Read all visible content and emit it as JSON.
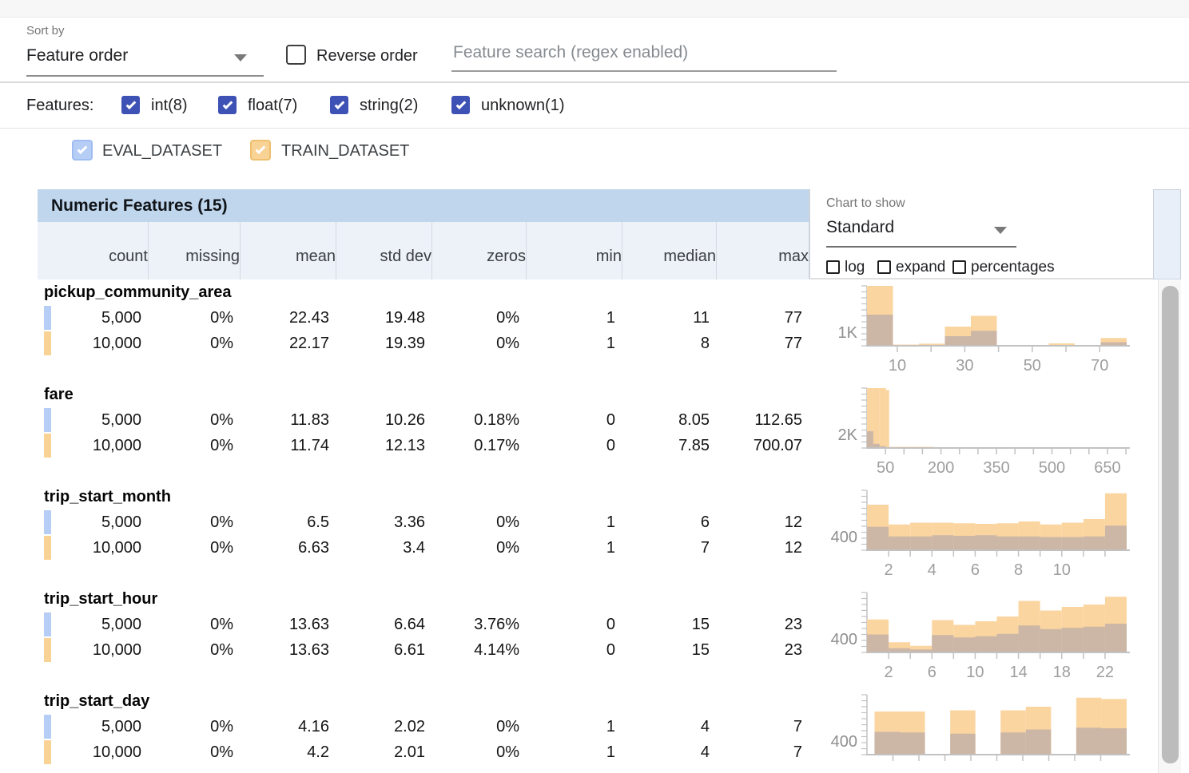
{
  "toolbar": {
    "sort_by_label": "Sort by",
    "sort_by_value": "Feature order",
    "reverse_order_label": "Reverse order",
    "search_placeholder": "Feature search (regex enabled)"
  },
  "filters": {
    "label": "Features:",
    "checkbox_color": "#3e51b5",
    "items": [
      {
        "label": "int(8)",
        "checked": true
      },
      {
        "label": "float(7)",
        "checked": true
      },
      {
        "label": "string(2)",
        "checked": true
      },
      {
        "label": "unknown(1)",
        "checked": true
      }
    ]
  },
  "datasets": {
    "items": [
      {
        "name": "EVAL_DATASET",
        "checked": true,
        "color": "#b6cdf6",
        "border": "#a0bdf1"
      },
      {
        "name": "TRAIN_DATASET",
        "checked": true,
        "color": "#f9d395",
        "border": "#eec06f"
      }
    ]
  },
  "table": {
    "title": "Numeric Features (15)",
    "columns": [
      "count",
      "missing",
      "mean",
      "std dev",
      "zeros",
      "min",
      "median",
      "max"
    ],
    "header_bg": "#c0d6ed",
    "subheader_bg": "#edf1f8"
  },
  "chart_controls": {
    "label": "Chart to show",
    "selected": "Standard",
    "options": [
      {
        "label": "log",
        "checked": false
      },
      {
        "label": "expand",
        "checked": false
      },
      {
        "label": "percentages",
        "checked": false
      }
    ]
  },
  "features": [
    {
      "name": "pickup_community_area",
      "rows": [
        {
          "dataset": "EVAL_DATASET",
          "cells": [
            "5,000",
            "0%",
            "22.43",
            "19.48",
            "0%",
            "1",
            "11",
            "77"
          ]
        },
        {
          "dataset": "TRAIN_DATASET",
          "cells": [
            "10,000",
            "0%",
            "22.17",
            "19.39",
            "0%",
            "1",
            "8",
            "77"
          ]
        }
      ]
    },
    {
      "name": "fare",
      "rows": [
        {
          "dataset": "EVAL_DATASET",
          "cells": [
            "5,000",
            "0%",
            "11.83",
            "10.26",
            "0.18%",
            "0",
            "8.05",
            "112.65"
          ]
        },
        {
          "dataset": "TRAIN_DATASET",
          "cells": [
            "10,000",
            "0%",
            "11.74",
            "12.13",
            "0.17%",
            "0",
            "7.85",
            "700.07"
          ]
        }
      ]
    },
    {
      "name": "trip_start_month",
      "rows": [
        {
          "dataset": "EVAL_DATASET",
          "cells": [
            "5,000",
            "0%",
            "6.5",
            "3.36",
            "0%",
            "1",
            "6",
            "12"
          ]
        },
        {
          "dataset": "TRAIN_DATASET",
          "cells": [
            "10,000",
            "0%",
            "6.63",
            "3.4",
            "0%",
            "1",
            "7",
            "12"
          ]
        }
      ]
    },
    {
      "name": "trip_start_hour",
      "rows": [
        {
          "dataset": "EVAL_DATASET",
          "cells": [
            "5,000",
            "0%",
            "13.63",
            "6.64",
            "3.76%",
            "0",
            "15",
            "23"
          ]
        },
        {
          "dataset": "TRAIN_DATASET",
          "cells": [
            "10,000",
            "0%",
            "13.63",
            "6.61",
            "4.14%",
            "0",
            "15",
            "23"
          ]
        }
      ]
    },
    {
      "name": "trip_start_day",
      "rows": [
        {
          "dataset": "EVAL_DATASET",
          "cells": [
            "5,000",
            "0%",
            "4.16",
            "2.02",
            "0%",
            "1",
            "4",
            "7"
          ]
        },
        {
          "dataset": "TRAIN_DATASET",
          "cells": [
            "10,000",
            "0%",
            "4.2",
            "2.01",
            "0%",
            "1",
            "4",
            "7"
          ]
        }
      ]
    }
  ],
  "chart_style": {
    "train_color": "#fbd5a0",
    "eval_overlap_color": "#ccb6a6",
    "axis_color": "#c2c2c2",
    "tick_label_color": "#9e9e9e",
    "y_label_color": "#8f8f8f"
  },
  "chart_data": [
    {
      "type": "bar",
      "title": "pickup_community_area histogram",
      "series": [
        "TRAIN_DATASET",
        "EVAL_DATASET"
      ],
      "y_tick_label": "1K",
      "xmin": 1,
      "xmax": 78,
      "x_tick_labels": [
        10,
        30,
        50,
        70
      ],
      "minor_tick_start": 10,
      "minor_tick_step": 10,
      "bars": [
        {
          "x0": 1,
          "x1": 8.7,
          "train": 1.0,
          "eval": 0.52
        },
        {
          "x0": 8.7,
          "x1": 16.4,
          "train": 0.02,
          "eval": 0.01
        },
        {
          "x0": 16.4,
          "x1": 24.1,
          "train": 0.035,
          "eval": 0.015
        },
        {
          "x0": 24.1,
          "x1": 31.8,
          "train": 0.32,
          "eval": 0.16
        },
        {
          "x0": 31.8,
          "x1": 39.5,
          "train": 0.5,
          "eval": 0.25
        },
        {
          "x0": 39.5,
          "x1": 47.2,
          "train": 0.012,
          "eval": 0.006
        },
        {
          "x0": 47.2,
          "x1": 54.9,
          "train": 0.004,
          "eval": 0.002
        },
        {
          "x0": 54.9,
          "x1": 62.6,
          "train": 0.04,
          "eval": 0.012
        },
        {
          "x0": 62.6,
          "x1": 70.3,
          "train": 0.004,
          "eval": 0.002
        },
        {
          "x0": 70.3,
          "x1": 78,
          "train": 0.13,
          "eval": 0.06
        }
      ]
    },
    {
      "type": "bar",
      "title": "fare histogram",
      "series": [
        "TRAIN_DATASET",
        "EVAL_DATASET"
      ],
      "y_tick_label": "2K",
      "xmin": 0,
      "xmax": 702,
      "x_tick_labels": [
        50,
        200,
        350,
        500,
        650
      ],
      "minor_tick_start": 50,
      "minor_tick_step": 50,
      "bars": [
        {
          "x0": 0,
          "x1": 17,
          "train": 1.0,
          "eval": 0.28
        },
        {
          "x0": 17,
          "x1": 34,
          "train": 1.0,
          "eval": 0.07
        },
        {
          "x0": 34,
          "x1": 51,
          "train": 1.0,
          "eval": 0.03
        },
        {
          "x0": 51,
          "x1": 60,
          "train": 0.97,
          "eval": 0.01
        },
        {
          "x0": 60,
          "x1": 180,
          "train": 0.02,
          "eval": 0.004
        },
        {
          "x0": 180,
          "x1": 702,
          "train": 0.0,
          "eval": 0.0
        }
      ]
    },
    {
      "type": "bar",
      "title": "trip_start_month histogram",
      "series": [
        "TRAIN_DATASET",
        "EVAL_DATASET"
      ],
      "y_tick_label": "400",
      "xmin": 1,
      "xmax": 13,
      "x_tick_labels": [
        2,
        4,
        6,
        8,
        10
      ],
      "minor_tick_start": 2,
      "minor_tick_step": 1,
      "bars": [
        {
          "x0": 1,
          "x1": 2,
          "train": 0.76,
          "eval": 0.39
        },
        {
          "x0": 2,
          "x1": 3,
          "train": 0.43,
          "eval": 0.23
        },
        {
          "x0": 3,
          "x1": 4,
          "train": 0.46,
          "eval": 0.23
        },
        {
          "x0": 4,
          "x1": 5,
          "train": 0.46,
          "eval": 0.25
        },
        {
          "x0": 5,
          "x1": 6,
          "train": 0.45,
          "eval": 0.24
        },
        {
          "x0": 6,
          "x1": 7,
          "train": 0.44,
          "eval": 0.25
        },
        {
          "x0": 7,
          "x1": 8,
          "train": 0.45,
          "eval": 0.23
        },
        {
          "x0": 8,
          "x1": 9,
          "train": 0.48,
          "eval": 0.23
        },
        {
          "x0": 9,
          "x1": 10,
          "train": 0.43,
          "eval": 0.22
        },
        {
          "x0": 10,
          "x1": 11,
          "train": 0.46,
          "eval": 0.22
        },
        {
          "x0": 11,
          "x1": 12,
          "train": 0.52,
          "eval": 0.23
        },
        {
          "x0": 12,
          "x1": 13,
          "train": 0.95,
          "eval": 0.41
        }
      ]
    },
    {
      "type": "bar",
      "title": "trip_start_hour histogram",
      "series": [
        "TRAIN_DATASET",
        "EVAL_DATASET"
      ],
      "y_tick_label": "400",
      "xmin": 0,
      "xmax": 24,
      "x_tick_labels": [
        2,
        6,
        10,
        14,
        18,
        22
      ],
      "minor_tick_start": 2,
      "minor_tick_step": 2,
      "bars": [
        {
          "x0": 0,
          "x1": 2,
          "train": 0.55,
          "eval": 0.3
        },
        {
          "x0": 2,
          "x1": 4,
          "train": 0.17,
          "eval": 0.07
        },
        {
          "x0": 4,
          "x1": 6,
          "train": 0.11,
          "eval": 0.05
        },
        {
          "x0": 6,
          "x1": 8,
          "train": 0.54,
          "eval": 0.29
        },
        {
          "x0": 8,
          "x1": 10,
          "train": 0.46,
          "eval": 0.25
        },
        {
          "x0": 10,
          "x1": 12,
          "train": 0.52,
          "eval": 0.27
        },
        {
          "x0": 12,
          "x1": 14,
          "train": 0.6,
          "eval": 0.31
        },
        {
          "x0": 14,
          "x1": 16,
          "train": 0.86,
          "eval": 0.45
        },
        {
          "x0": 16,
          "x1": 18,
          "train": 0.7,
          "eval": 0.39
        },
        {
          "x0": 18,
          "x1": 20,
          "train": 0.76,
          "eval": 0.41
        },
        {
          "x0": 20,
          "x1": 22,
          "train": 0.8,
          "eval": 0.43
        },
        {
          "x0": 22,
          "x1": 24,
          "train": 0.93,
          "eval": 0.48
        }
      ]
    },
    {
      "type": "bar",
      "title": "trip_start_day histogram",
      "series": [
        "TRAIN_DATASET",
        "EVAL_DATASET"
      ],
      "y_tick_label": "400",
      "xmin": 0,
      "xmax": 10.3,
      "x_tick_labels": [],
      "minor_tick_start": 1.03,
      "minor_tick_step": 1.03,
      "bars": [
        {
          "x0": 0.3,
          "x1": 1.3,
          "train": 0.72,
          "eval": 0.38
        },
        {
          "x0": 1.3,
          "x1": 2.3,
          "train": 0.72,
          "eval": 0.37
        },
        {
          "x0": 3.3,
          "x1": 4.3,
          "train": 0.74,
          "eval": 0.35
        },
        {
          "x0": 5.3,
          "x1": 6.3,
          "train": 0.74,
          "eval": 0.37
        },
        {
          "x0": 6.3,
          "x1": 7.3,
          "train": 0.8,
          "eval": 0.42
        },
        {
          "x0": 8.3,
          "x1": 9.3,
          "train": 0.95,
          "eval": 0.45
        },
        {
          "x0": 9.3,
          "x1": 10.3,
          "train": 0.93,
          "eval": 0.44
        }
      ]
    }
  ]
}
